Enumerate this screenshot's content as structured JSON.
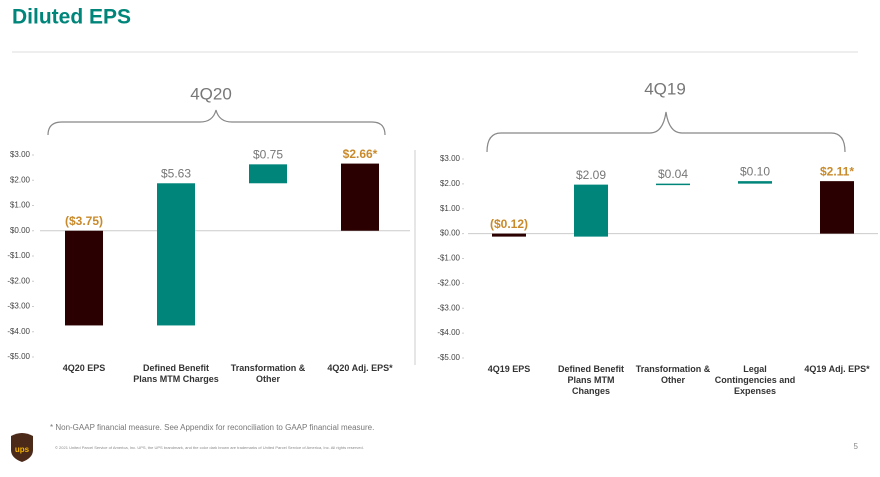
{
  "header": {
    "title": "Diluted EPS"
  },
  "chart_data": [
    {
      "type": "waterfall",
      "title": "4Q20",
      "categories": [
        "4Q20 EPS",
        "Defined Benefit Plans MTM Charges",
        "Transformation & Other",
        "4Q20 Adj. EPS*"
      ],
      "measures": [
        "absolute",
        "relative",
        "relative",
        "total"
      ],
      "values": [
        -3.75,
        5.63,
        0.75,
        2.66
      ],
      "value_labels": [
        "($3.75)",
        "$5.63",
        "$0.75",
        "$2.66*"
      ],
      "colors": [
        "#2b0000",
        "#00857a",
        "#00857a",
        "#2b0000"
      ],
      "ylim": [
        -5,
        3
      ],
      "yticks": [
        {
          "value": 3,
          "label": "$3.00"
        },
        {
          "value": 2,
          "label": "$2.00"
        },
        {
          "value": 1,
          "label": "$1.00"
        },
        {
          "value": 0,
          "label": "$0.00"
        },
        {
          "value": -1,
          "label": "-$1.00"
        },
        {
          "value": -2,
          "label": "-$2.00"
        },
        {
          "value": -3,
          "label": "-$3.00"
        },
        {
          "value": -4,
          "label": "-$4.00"
        },
        {
          "value": -5,
          "label": "-$5.00"
        }
      ]
    },
    {
      "type": "waterfall",
      "title": "4Q19",
      "categories": [
        "4Q19 EPS",
        "Defined Benefit Plans MTM Changes",
        "Transformation & Other",
        "Legal Contingencies and Expenses",
        "4Q19 Adj. EPS*"
      ],
      "measures": [
        "absolute",
        "relative",
        "relative",
        "relative",
        "total"
      ],
      "values": [
        -0.12,
        2.09,
        0.04,
        0.1,
        2.11
      ],
      "value_labels": [
        "($0.12)",
        "$2.09",
        "$0.04",
        "$0.10",
        "$2.11*"
      ],
      "colors": [
        "#2b0000",
        "#00857a",
        "#00857a",
        "#00857a",
        "#2b0000"
      ],
      "ylim": [
        -5,
        3
      ],
      "yticks": [
        {
          "value": 3,
          "label": "$3.00"
        },
        {
          "value": 2,
          "label": "$2.00"
        },
        {
          "value": 1,
          "label": "$1.00"
        },
        {
          "value": 0,
          "label": "$0.00"
        },
        {
          "value": -1,
          "label": "-$1.00"
        },
        {
          "value": -2,
          "label": "-$2.00"
        },
        {
          "value": -3,
          "label": "-$3.00"
        },
        {
          "value": -4,
          "label": "-$4.00"
        },
        {
          "value": -5,
          "label": "-$5.00"
        }
      ]
    }
  ],
  "footnote": "* Non-GAAP financial measure. See Appendix for reconciliation to GAAP financial measure.",
  "copyright": "© 2021 United Parcel Service of America, Inc. UPS, the UPS brandmark, and the color dark brown are trademarks of United Parcel Service of America, Inc. All rights reserved.",
  "page_number": 5
}
